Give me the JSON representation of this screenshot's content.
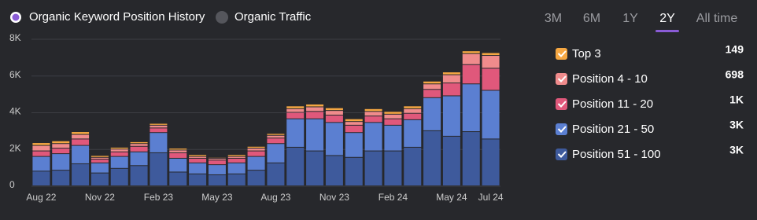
{
  "toggles": [
    "Organic Keyword Position History",
    "Organic Traffic"
  ],
  "range_tabs": [
    "3M",
    "6M",
    "1Y",
    "2Y",
    "All time"
  ],
  "active_range": 3,
  "chart_data": {
    "type": "stacked-bar",
    "categories": [
      "Aug 22",
      null,
      null,
      "Nov 22",
      null,
      null,
      "Feb 23",
      null,
      null,
      "May 23",
      null,
      null,
      "Aug 23",
      null,
      null,
      "Nov 23",
      null,
      null,
      "Feb 24",
      null,
      null,
      "May 24",
      null,
      "Jul 24"
    ],
    "series": [
      {
        "name": "Position 51 - 100",
        "total_label": "3K",
        "color": "#3e5a9c",
        "values": [
          800,
          850,
          1200,
          700,
          950,
          1100,
          1800,
          750,
          650,
          600,
          650,
          850,
          1250,
          2100,
          1900,
          1650,
          1550,
          1900,
          1900,
          2100,
          3000,
          2700,
          2950,
          2550
        ]
      },
      {
        "name": "Position 21 - 50",
        "total_label": "3K",
        "color": "#5b7fd1",
        "values": [
          800,
          900,
          1000,
          550,
          650,
          750,
          1100,
          750,
          600,
          550,
          600,
          750,
          1050,
          1550,
          1750,
          1800,
          1350,
          1550,
          1400,
          1500,
          1800,
          2200,
          2600,
          2650
        ]
      },
      {
        "name": "Position 11 - 20",
        "total_label": "1K",
        "color": "#e0587b",
        "values": [
          300,
          300,
          350,
          200,
          250,
          300,
          250,
          300,
          250,
          250,
          250,
          300,
          300,
          350,
          400,
          400,
          400,
          350,
          350,
          350,
          450,
          700,
          1050,
          1200
        ]
      },
      {
        "name": "Position 4 - 10",
        "total_label": "698",
        "color": "#f08b8c",
        "values": [
          300,
          250,
          250,
          100,
          150,
          150,
          150,
          150,
          100,
          100,
          100,
          150,
          150,
          200,
          250,
          250,
          200,
          250,
          250,
          250,
          300,
          450,
          600,
          700
        ]
      },
      {
        "name": "Top 3",
        "total_label": "149",
        "color": "#f5a742",
        "values": [
          150,
          150,
          150,
          100,
          100,
          100,
          100,
          100,
          100,
          50,
          100,
          100,
          100,
          150,
          150,
          150,
          150,
          150,
          150,
          150,
          150,
          150,
          150,
          150
        ]
      }
    ],
    "ylim": [
      0,
      8000
    ],
    "yticks": [
      0,
      {
        "value": 2000,
        "label": "2K"
      },
      {
        "value": 4000,
        "label": "4K"
      },
      {
        "value": 6000,
        "label": "6K"
      },
      {
        "value": 8000,
        "label": "8K"
      }
    ],
    "grid": true
  }
}
